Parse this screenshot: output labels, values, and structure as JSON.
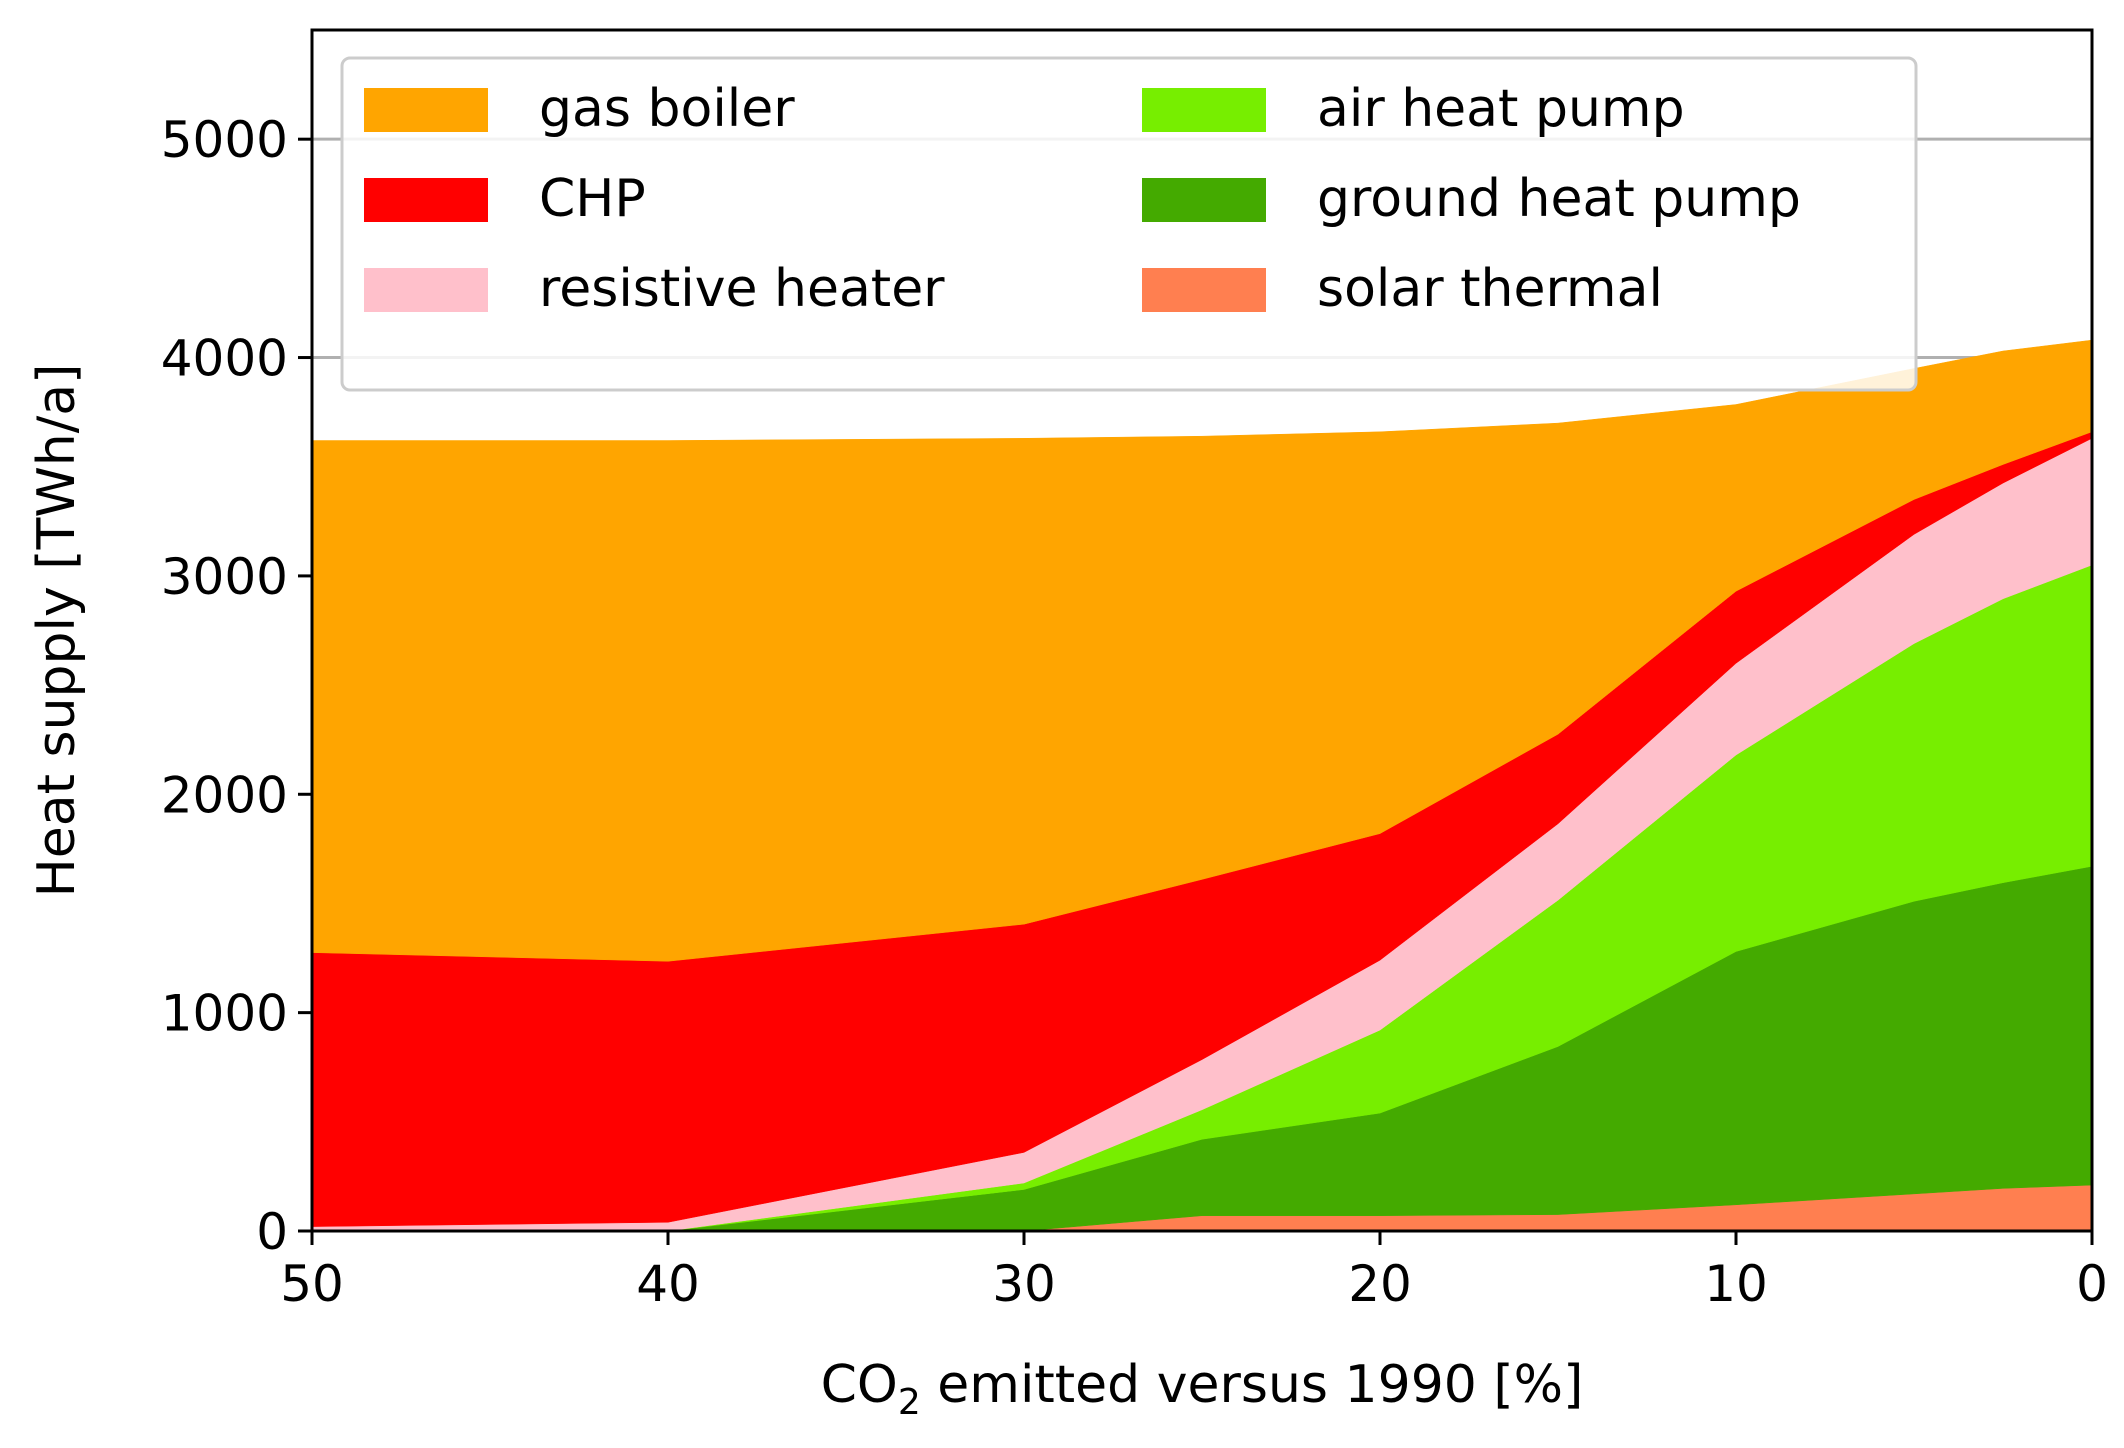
{
  "chart_data": {
    "type": "area",
    "stacked": true,
    "xlabel_parts": {
      "pre": "CO",
      "sub": "2",
      "post": " emitted versus 1990 [%]"
    },
    "ylabel": "Heat supply [TWh/a]",
    "xlim": [
      50,
      0
    ],
    "ylim": [
      0,
      5500
    ],
    "x_ticks": [
      50,
      40,
      30,
      20,
      10,
      0
    ],
    "y_ticks": [
      0,
      1000,
      2000,
      3000,
      4000,
      5000
    ],
    "grid": "y",
    "legend_placement": "top-left",
    "x": [
      50,
      40,
      30,
      25,
      20,
      15,
      10,
      5,
      2.5,
      0
    ],
    "series": [
      {
        "name": "solar thermal",
        "color": "#ff7f50",
        "values": [
          0,
          0,
          0,
          70,
          70,
          75,
          120,
          170,
          195,
          210
        ]
      },
      {
        "name": "ground heat pump",
        "color": "#44aa00",
        "values": [
          0,
          0,
          190,
          350,
          470,
          770,
          1160,
          1340,
          1400,
          1460
        ]
      },
      {
        "name": "air heat pump",
        "color": "#77ee00",
        "values": [
          0,
          0,
          30,
          135,
          380,
          670,
          900,
          1180,
          1300,
          1380
        ]
      },
      {
        "name": "resistive heater",
        "color": "#ffc0cb",
        "values": [
          20,
          40,
          140,
          230,
          320,
          350,
          420,
          500,
          530,
          580
        ]
      },
      {
        "name": "CHP",
        "color": "#ff0000",
        "values": [
          1255,
          1195,
          1045,
          825,
          580,
          410,
          330,
          160,
          85,
          30
        ]
      },
      {
        "name": "gas boiler",
        "color": "#ffa500",
        "values": [
          2345,
          2385,
          2225,
          2030,
          1840,
          1425,
          855,
          600,
          520,
          420
        ]
      }
    ],
    "legend_order": [
      "gas boiler",
      "CHP",
      "resistive heater",
      "air heat pump",
      "ground heat pump",
      "solar thermal"
    ]
  }
}
